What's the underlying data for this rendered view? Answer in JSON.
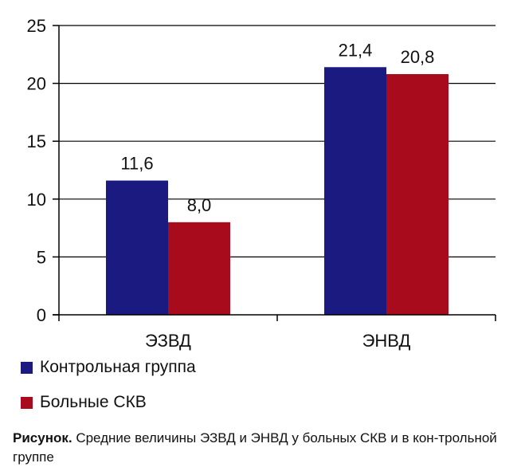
{
  "chart_data": {
    "type": "bar",
    "categories": [
      "ЭЗВД",
      "ЭНВД"
    ],
    "series": [
      {
        "name": "Контрольная группа",
        "values": [
          11.6,
          21.4
        ],
        "labels": [
          "11,6",
          "21,4"
        ],
        "color": "#1a1a80"
      },
      {
        "name": "Больные СКВ",
        "values": [
          8.0,
          20.8
        ],
        "labels": [
          "8,0",
          "20,8"
        ],
        "color": "#a80b1b"
      }
    ],
    "ylim": [
      0,
      25
    ],
    "yticks": [
      0,
      5,
      10,
      15,
      20,
      25
    ],
    "grid": true,
    "legend_position": "bottom-left"
  },
  "caption": {
    "bold": "Рисунок.",
    "text": " Средние величины ЭЗВД и ЭНВД у больных СКВ и в кон-трольной группе"
  }
}
